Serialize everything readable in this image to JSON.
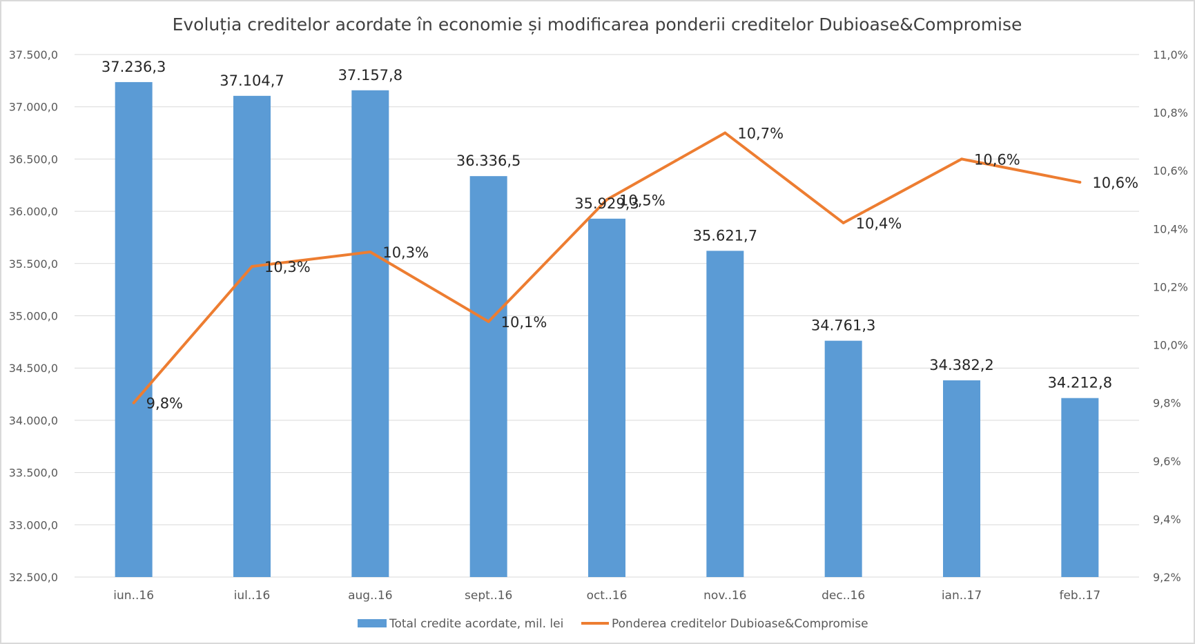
{
  "chart_data": {
    "type": "bar",
    "title": "Evoluția creditelor acordate în economie și modificarea ponderii creditelor Dubioase&Compromise",
    "categories": [
      "iun..16",
      "iul..16",
      "aug..16",
      "sept..16",
      "oct..16",
      "nov..16",
      "dec..16",
      "ian..17",
      "feb..17"
    ],
    "series": [
      {
        "name": "Total credite acordate, mil. lei",
        "type": "bar",
        "axis": "left",
        "color": "#5b9bd5",
        "values": [
          37236.3,
          37104.7,
          37157.8,
          36336.5,
          35929.3,
          35621.7,
          34761.3,
          34382.2,
          34212.8
        ],
        "labels": [
          "37.236,3",
          "37.104,7",
          "37.157,8",
          "36.336,5",
          "35.929,3",
          "35.621,7",
          "34.761,3",
          "34.382,2",
          "34.212,8"
        ]
      },
      {
        "name": "Ponderea creditelor Dubioase&Compromise",
        "type": "line",
        "axis": "right",
        "color": "#ed7d31",
        "values": [
          9.8,
          10.27,
          10.32,
          10.08,
          10.5,
          10.73,
          10.42,
          10.64,
          10.56
        ],
        "labels": [
          "9,8%",
          "10,3%",
          "10,3%",
          "10,1%",
          "10,5%",
          "10,7%",
          "10,4%",
          "10,6%",
          "10,6%"
        ]
      }
    ],
    "y_left": {
      "min": 32500,
      "max": 37500,
      "step": 500,
      "tick_labels": [
        "32.500,0",
        "33.000,0",
        "33.500,0",
        "34.000,0",
        "34.500,0",
        "35.000,0",
        "35.500,0",
        "36.000,0",
        "36.500,0",
        "37.000,0",
        "37.500,0"
      ]
    },
    "y_right": {
      "min": 9.2,
      "max": 11.0,
      "step": 0.2,
      "tick_labels": [
        "9,2%",
        "9,4%",
        "9,6%",
        "9,8%",
        "10,0%",
        "10,2%",
        "10,4%",
        "10,6%",
        "10,8%",
        "11,0%"
      ]
    },
    "grid": true,
    "legend_position": "bottom"
  }
}
